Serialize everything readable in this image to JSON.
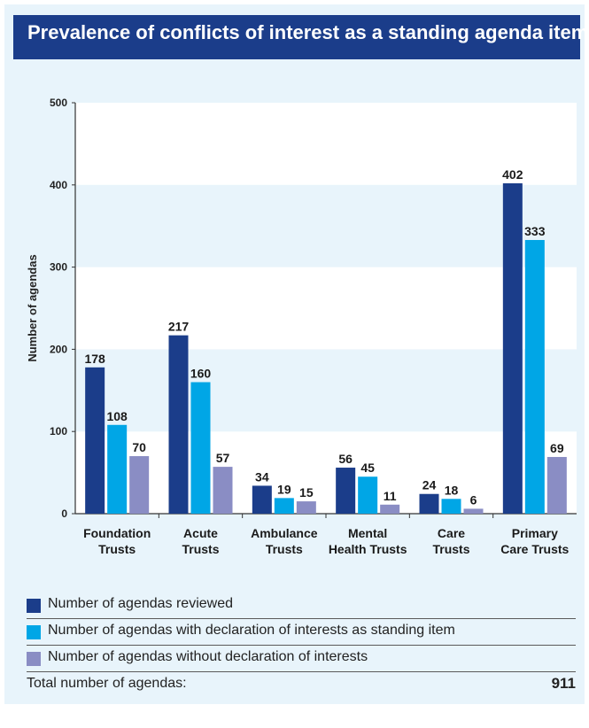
{
  "title": "Prevalence of conflicts of interest as a standing agenda item",
  "colors": {
    "title_bg": "#1b3d8a",
    "background": "#e8f4fb",
    "series": [
      "#1b3d8a",
      "#00a6e6",
      "#8a8dc4"
    ]
  },
  "chart_data": {
    "type": "bar",
    "title": "",
    "xlabel": "",
    "ylabel": "Number of agendas",
    "ylim": [
      0,
      500
    ],
    "yticks": [
      0,
      100,
      200,
      300,
      400,
      500
    ],
    "grid": "horizontal bands",
    "categories": [
      [
        "Foundation",
        "Trusts"
      ],
      [
        "Acute",
        "Trusts"
      ],
      [
        "Ambulance",
        "Trusts"
      ],
      [
        "Mental",
        "Health Trusts"
      ],
      [
        "Care",
        "Trusts"
      ],
      [
        "Primary",
        "Care Trusts"
      ]
    ],
    "series": [
      {
        "name": "Number of agendas reviewed",
        "values": [
          178,
          217,
          34,
          56,
          24,
          402
        ]
      },
      {
        "name": "Number of agendas with declaration of interests as standing item",
        "values": [
          108,
          160,
          19,
          45,
          18,
          333
        ]
      },
      {
        "name": "Number of agendas without declaration of interests",
        "values": [
          70,
          57,
          15,
          11,
          6,
          69
        ]
      }
    ]
  },
  "total": {
    "label": "Total number of agendas:",
    "value": "911"
  }
}
